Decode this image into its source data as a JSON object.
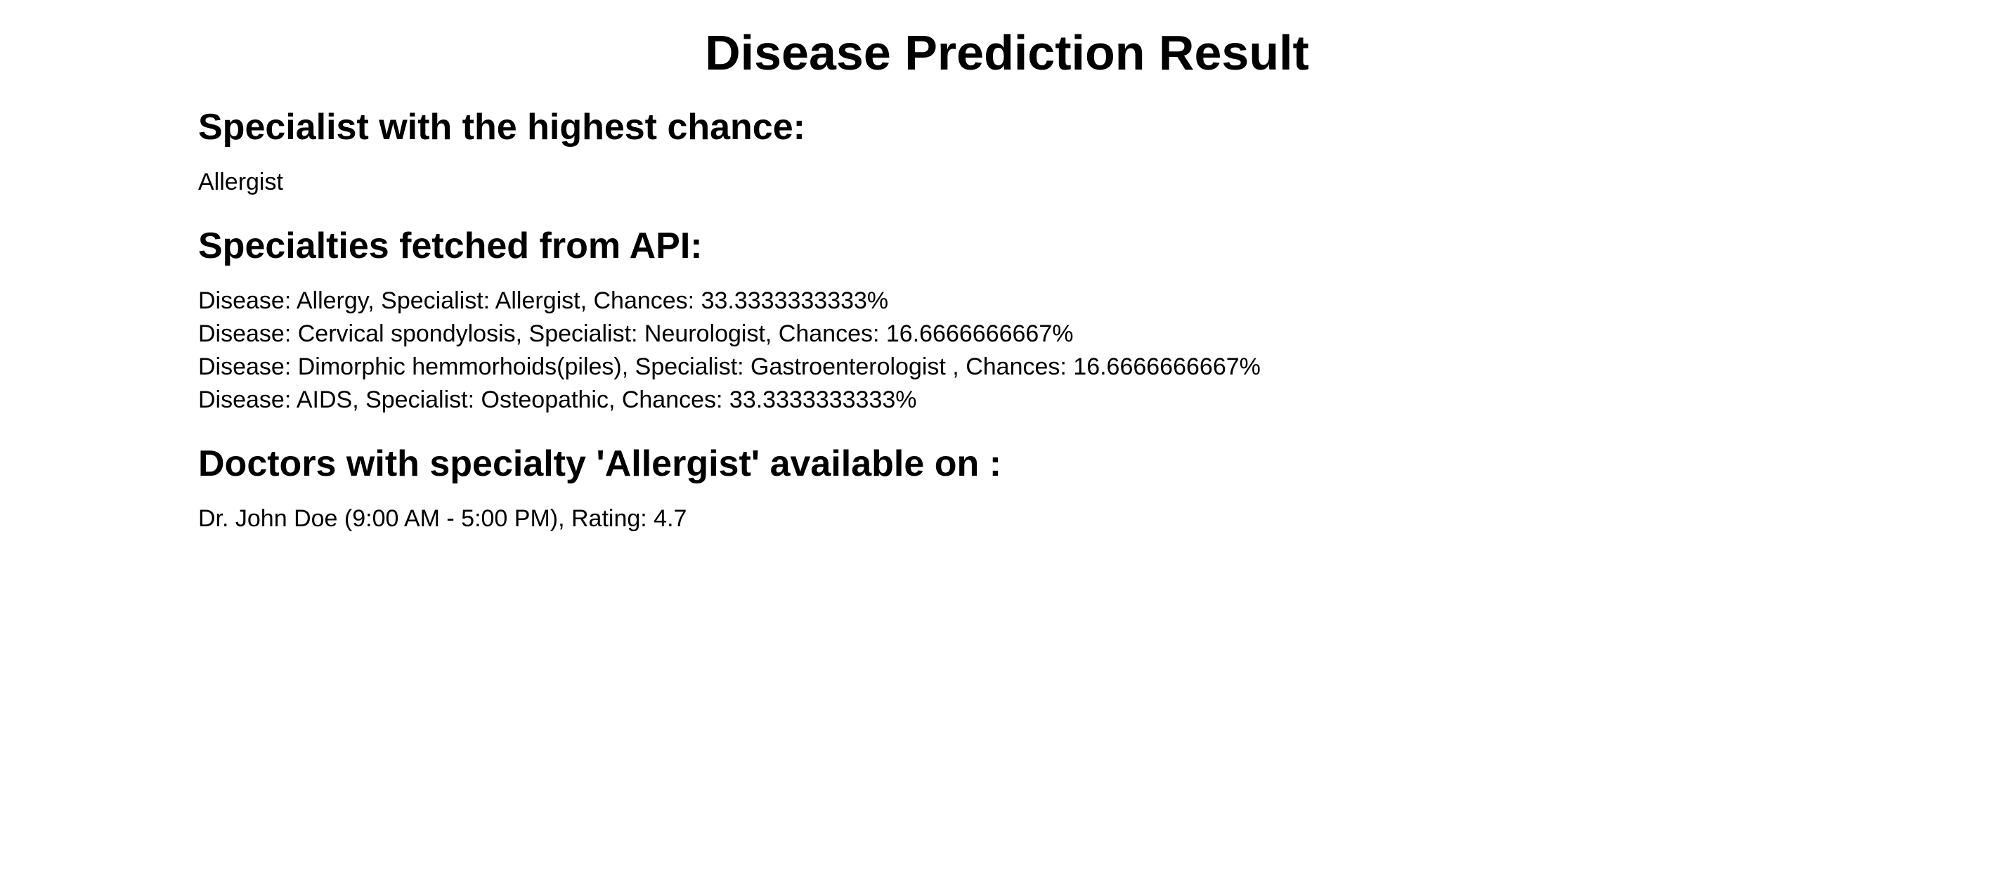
{
  "page": {
    "title": "Disease Prediction Result"
  },
  "top_specialist": {
    "heading": "Specialist with the highest chance:",
    "value": "Allergist"
  },
  "specialties": {
    "heading": "Specialties fetched from API:",
    "items": [
      "Disease: Allergy, Specialist: Allergist, Chances: 33.3333333333%",
      "Disease: Cervical spondylosis, Specialist: Neurologist, Chances: 16.6666666667%",
      "Disease: Dimorphic hemmorhoids(piles), Specialist: Gastroenterologist , Chances: 16.6666666667%",
      "Disease: AIDS, Specialist: Osteopathic, Chances: 33.3333333333%"
    ]
  },
  "doctors": {
    "heading": "Doctors with specialty 'Allergist' available on :",
    "items": [
      "Dr. John Doe (9:00 AM - 5:00 PM), Rating: 4.7"
    ]
  }
}
